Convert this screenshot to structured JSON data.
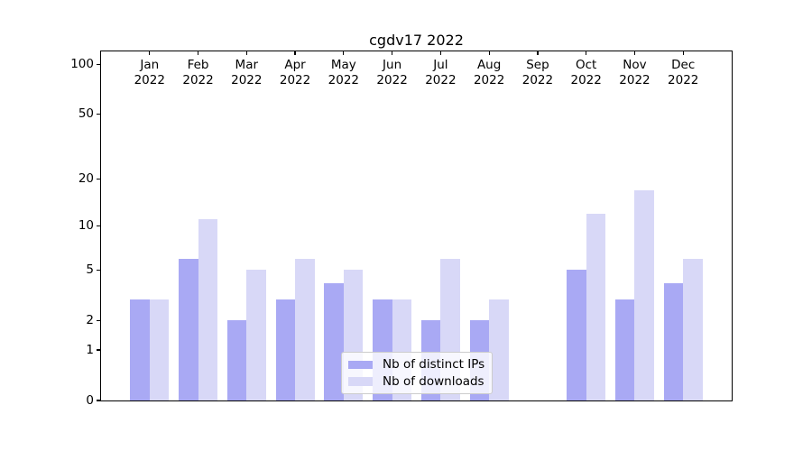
{
  "chart_data": {
    "type": "bar",
    "title": "cgdv17 2022",
    "x_tick_year": "2022",
    "categories": [
      "Jan",
      "Feb",
      "Mar",
      "Apr",
      "May",
      "Jun",
      "Jul",
      "Aug",
      "Sep",
      "Oct",
      "Nov",
      "Dec"
    ],
    "series": [
      {
        "name": "Nb of distinct IPs",
        "color": "#a9a9f4",
        "values": [
          3,
          6,
          2,
          3,
          4,
          3,
          2,
          2,
          0,
          5,
          3,
          4
        ]
      },
      {
        "name": "Nb of downloads",
        "color": "#d8d8f7",
        "values": [
          3,
          11,
          5,
          6,
          5,
          3,
          6,
          3,
          0,
          12,
          17,
          6
        ]
      }
    ],
    "y_axis": {
      "scale": "log1p",
      "ticks": [
        0,
        1,
        2,
        5,
        10,
        20,
        50,
        100
      ],
      "max": 120,
      "gridlines_major": [
        1,
        10,
        100
      ],
      "gridlines_minor": [
        2,
        3,
        4,
        5,
        6,
        7,
        8,
        9,
        20,
        30,
        40,
        50,
        60,
        70,
        80,
        90
      ]
    },
    "legend": {
      "position": "lower center"
    },
    "colors": {
      "major_grid": "#c6c6c6",
      "minor_grid": "#ebebeb",
      "spine": "#000000",
      "background": "#ffffff"
    }
  }
}
